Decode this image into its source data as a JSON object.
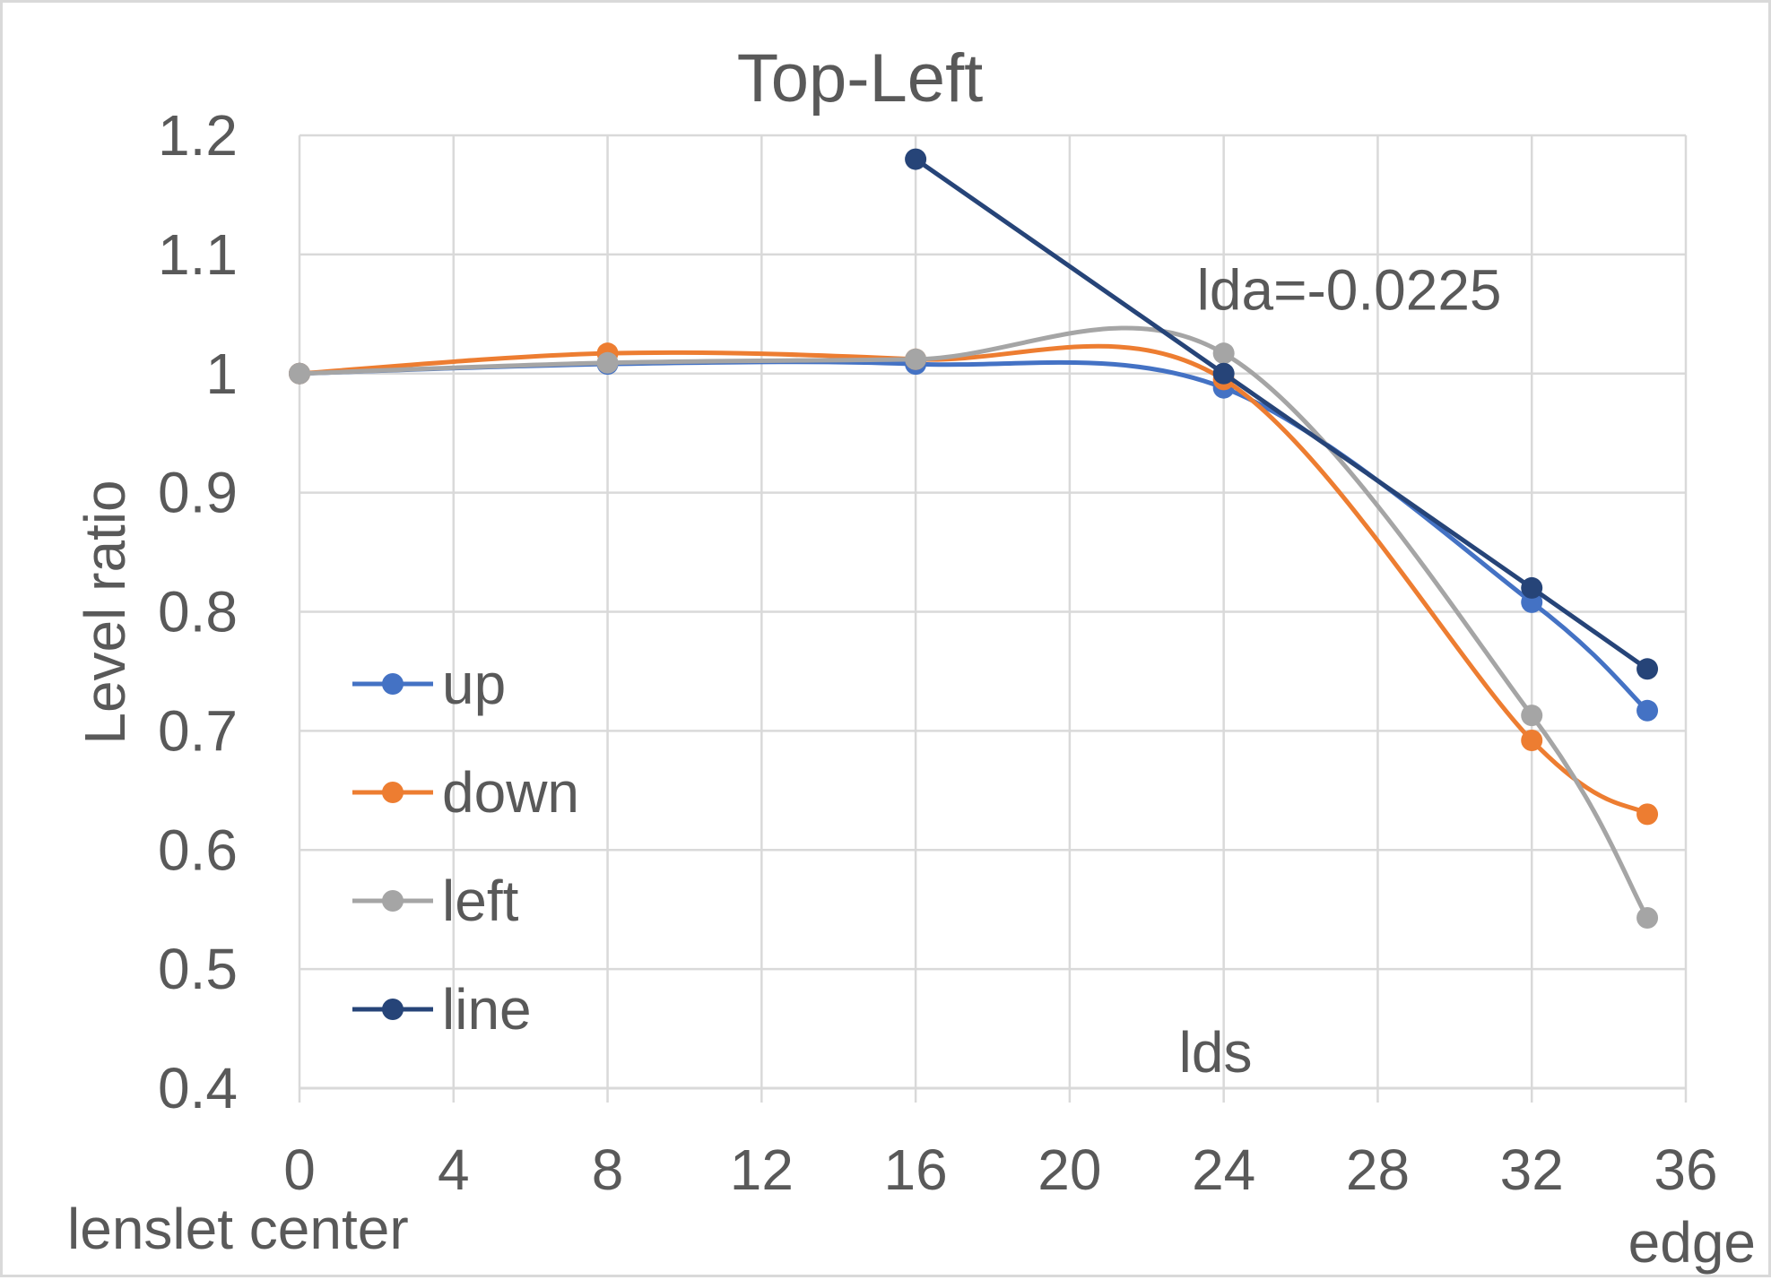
{
  "chart_data": {
    "type": "line",
    "title": "Top-Left",
    "ylabel": "Level ratio",
    "xlabel": "",
    "x_left_label": "lenslet center",
    "x_right_label": "edge",
    "xlim": [
      0,
      36
    ],
    "ylim": [
      0.4,
      1.2
    ],
    "x_ticks": [
      0,
      4,
      8,
      12,
      16,
      20,
      24,
      28,
      32,
      36
    ],
    "y_ticks": [
      0.4,
      0.5,
      0.6,
      0.7,
      0.8,
      0.9,
      1,
      1.1,
      1.2
    ],
    "y_tick_labels": [
      "0.4",
      "0.5",
      "0.6",
      "0.7",
      "0.8",
      "0.9",
      "1",
      "1.1",
      "1.2"
    ],
    "grid": true,
    "legend_position": "left",
    "annotations": [
      {
        "text": "lda=-0.0225",
        "x": 24,
        "y": 1.07
      },
      {
        "text": "lds",
        "x": 24,
        "y": 0.43
      }
    ],
    "series": [
      {
        "name": "up",
        "color": "#4472c4",
        "smooth": true,
        "x": [
          0,
          8,
          16,
          24,
          32,
          35
        ],
        "y": [
          1.0,
          1.008,
          1.008,
          0.988,
          0.808,
          0.717
        ]
      },
      {
        "name": "down",
        "color": "#ed7d31",
        "smooth": true,
        "x": [
          0,
          8,
          16,
          24,
          32,
          35
        ],
        "y": [
          1.0,
          1.017,
          1.012,
          0.995,
          0.692,
          0.63
        ]
      },
      {
        "name": "left",
        "color": "#a5a5a5",
        "smooth": true,
        "x": [
          0,
          8,
          16,
          24,
          32,
          35
        ],
        "y": [
          1.0,
          1.009,
          1.012,
          1.017,
          0.713,
          0.543
        ]
      },
      {
        "name": "line",
        "color": "#264478",
        "smooth": false,
        "x": [
          16,
          24,
          32,
          35
        ],
        "y": [
          1.18,
          1.0,
          0.82,
          0.752
        ]
      }
    ]
  }
}
